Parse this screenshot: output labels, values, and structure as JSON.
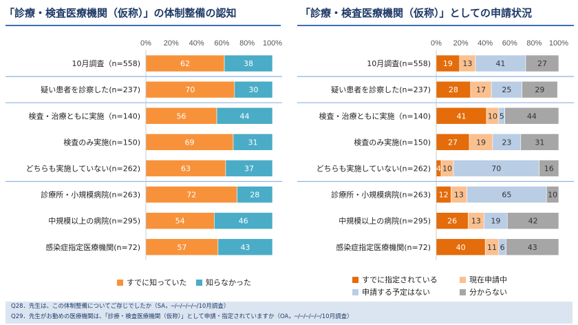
{
  "colors": {
    "title": "#1f3a66",
    "rule": "#3b6fb6",
    "left": [
      "#f7923a",
      "#4aacc6"
    ],
    "right": [
      "#e46c0a",
      "#fac090",
      "#b9cde5",
      "#a6a6a6"
    ],
    "sep": "#8eb4e3",
    "footnote_bg": "#dbe5f1"
  },
  "chart_data": [
    {
      "type": "bar",
      "orientation": "horizontal",
      "stacked": true,
      "title": "「診療・検査医療機関（仮称）」の体制整備の認知",
      "xlim": [
        0,
        100
      ],
      "ticks": [
        "0%",
        "20%",
        "40%",
        "60%",
        "80%",
        "100%"
      ],
      "categories": [
        "10月調査（n=558)",
        "疑い患者を診察した(n=237)",
        "検査・治療ともに実施（n=140)",
        "検査のみ実施(n=150)",
        "どちらも実施していない(n=262)",
        "診療所・小規模病院(n=263)",
        "中規模以上の病院(n=295)",
        "感染症指定医療機関(n=72)"
      ],
      "series": [
        {
          "name": "すでに知っていた",
          "values": [
            62,
            70,
            56,
            69,
            63,
            72,
            54,
            57
          ]
        },
        {
          "name": "知らなかった",
          "values": [
            38,
            30,
            44,
            31,
            37,
            28,
            46,
            43
          ]
        }
      ],
      "legend": "bottom"
    },
    {
      "type": "bar",
      "orientation": "horizontal",
      "stacked": true,
      "title": "「診療・検査医療機関（仮称）」としての申請状況",
      "xlim": [
        0,
        100
      ],
      "ticks": [
        "0%",
        "20%",
        "40%",
        "60%",
        "80%",
        "100%"
      ],
      "categories": [
        "10月調査(n=558)",
        "疑い患者を診察した(n=237)",
        "検査・治療ともに実施（n=140)",
        "検査のみ実施(n=150)",
        "どちらも実施していない(n=262)",
        "診療所・小規模病院(n=263)",
        "中規模以上の病院(n=295)",
        "感染症指定医療機関(n=72)"
      ],
      "series": [
        {
          "name": "すでに指定されている",
          "values": [
            19,
            28,
            41,
            27,
            4,
            12,
            26,
            40
          ]
        },
        {
          "name": "現在申請中",
          "values": [
            13,
            17,
            10,
            19,
            10,
            13,
            13,
            11
          ]
        },
        {
          "name": "申請する予定はない",
          "values": [
            41,
            25,
            5,
            23,
            70,
            65,
            19,
            6
          ]
        },
        {
          "name": "分からない",
          "values": [
            27,
            29,
            44,
            31,
            16,
            10,
            42,
            43
          ]
        }
      ],
      "legend": "bottom"
    }
  ],
  "footnotes": [
    "Q28．先生は、この体制整備についてご存じでしたか（SA，─/─/─/─/─/10月調査）",
    "Q29．先生がお勤めの医療機関は、「診療・検査医療機関（仮称）」として申請・指定されていますか（OA，─/─/─/─/─/10月調査）"
  ]
}
